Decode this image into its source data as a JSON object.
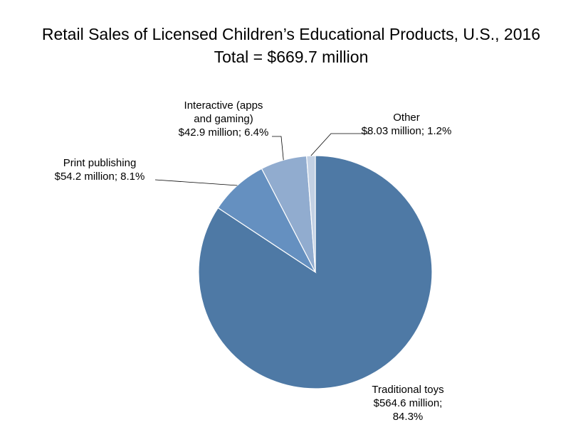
{
  "chart_data": {
    "type": "pie",
    "title": "Retail Sales of Licensed Children’s Educational Products, U.S., 2016",
    "subtitle": "Total = $669.7 million",
    "slices": [
      {
        "name": "Traditional toys",
        "value": 564.6,
        "percent": 84.3,
        "color": "#4e79a5",
        "label_lines": [
          "Traditional toys",
          "$564.6 million;",
          "84.3%"
        ]
      },
      {
        "name": "Print publishing",
        "value": 54.2,
        "percent": 8.1,
        "color": "#6590c0",
        "label_lines": [
          "Print publishing",
          "$54.2 million; 8.1%"
        ]
      },
      {
        "name": "Interactive (apps and gaming)",
        "value": 42.9,
        "percent": 6.4,
        "color": "#91accf",
        "label_lines": [
          "Interactive (apps",
          "and gaming)",
          "$42.9 million; 6.4%"
        ]
      },
      {
        "name": "Other",
        "value": 8.03,
        "percent": 1.2,
        "color": "#c3d1e4",
        "label_lines": [
          "Other",
          "$8.03 million; 1.2%"
        ]
      }
    ],
    "legend": "none"
  }
}
